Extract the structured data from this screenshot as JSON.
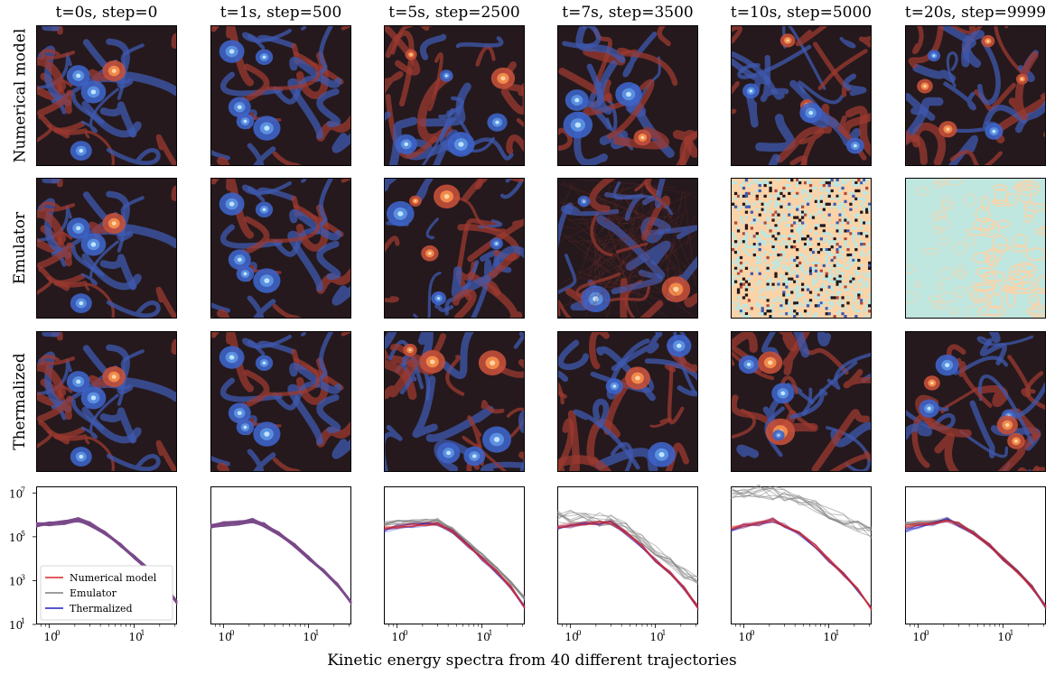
{
  "columns": [
    {
      "title": "t=0s, step=0"
    },
    {
      "title": "t=1s, step=500"
    },
    {
      "title": "t=5s, step=2500"
    },
    {
      "title": "t=7s, step=3500"
    },
    {
      "title": "t=10s, step=5000"
    },
    {
      "title": "t=20s, step=9999"
    }
  ],
  "rows": [
    {
      "label": "Numerical model"
    },
    {
      "label": "Emulator"
    },
    {
      "label": "Thermalized"
    }
  ],
  "colors": {
    "numerical": "#d62728",
    "emulator": "#7f7f7f",
    "thermalized": "#1f1fbf",
    "overlap": "#7a4a8a",
    "vort_pos": "#f08a4b",
    "vort_neg": "#5b8fe0",
    "vort_bg": "#25191d",
    "noise_light": "#fbd3a8",
    "noise_cyan": "#bfe6df"
  },
  "chart_data": {
    "type": "line",
    "title": "",
    "xlabel": "Kinetic energy spectra from 40 different trajectories",
    "ylabel": "",
    "xscale": "log",
    "yscale": "log",
    "xlim": [
      0.7,
      32
    ],
    "ylim": [
      10,
      20000000
    ],
    "x_ticks": [
      "10^0",
      "10^1"
    ],
    "y_ticks": [
      "10^1",
      "10^3",
      "10^5",
      "10^7"
    ],
    "legend": {
      "placement": "lower-left",
      "entries": [
        "Numerical model",
        "Emulator",
        "Thermalized"
      ]
    },
    "num_trajectories": 40,
    "k": [
      0.7,
      1,
      1.5,
      2.2,
      3,
      4.5,
      7,
      10,
      15,
      22,
      32
    ],
    "panels": [
      {
        "time": "t=0s",
        "series": [
          {
            "name": "Numerical model",
            "values": [
              350000,
              400000,
              450000,
              600000,
              380000,
              150000,
              40000,
              12000,
              3000,
              700,
              100
            ]
          },
          {
            "name": "Emulator",
            "values": [
              350000,
              400000,
              450000,
              600000,
              380000,
              150000,
              40000,
              12000,
              3000,
              700,
              100
            ]
          },
          {
            "name": "Thermalized",
            "values": [
              350000,
              400000,
              450000,
              600000,
              380000,
              150000,
              40000,
              12000,
              3000,
              700,
              100
            ]
          }
        ]
      },
      {
        "time": "t=1s",
        "series": [
          {
            "name": "Numerical model",
            "values": [
              300000,
              380000,
              420000,
              550000,
              350000,
              140000,
              38000,
              11000,
              2800,
              650,
              100
            ]
          },
          {
            "name": "Emulator",
            "values": [
              300000,
              380000,
              420000,
              550000,
              350000,
              140000,
              38000,
              11000,
              2800,
              650,
              100
            ]
          },
          {
            "name": "Thermalized",
            "values": [
              300000,
              380000,
              420000,
              550000,
              350000,
              140000,
              38000,
              11000,
              2800,
              650,
              100
            ]
          }
        ]
      },
      {
        "time": "t=5s",
        "series": [
          {
            "name": "Numerical model",
            "values": [
              250000,
              300000,
              350000,
              400000,
              420000,
              180000,
              40000,
              11000,
              2500,
              500,
              60
            ]
          },
          {
            "name": "Emulator",
            "values": [
              400000,
              450000,
              480000,
              500000,
              550000,
              220000,
              50000,
              15000,
              3500,
              800,
              150
            ]
          },
          {
            "name": "Thermalized",
            "values": [
              200000,
              280000,
              330000,
              380000,
              400000,
              170000,
              38000,
              10000,
              2400,
              480,
              60
            ]
          }
        ]
      },
      {
        "time": "t=7s",
        "series": [
          {
            "name": "Numerical model",
            "values": [
              300000,
              350000,
              400000,
              420000,
              450000,
              160000,
              38000,
              9000,
              2200,
              450,
              60
            ]
          },
          {
            "name": "Emulator",
            "values": [
              900000,
              800000,
              700000,
              600000,
              500000,
              250000,
              80000,
              25000,
              6000,
              2000,
              1000
            ]
          },
          {
            "name": "Thermalized",
            "values": [
              250000,
              320000,
              380000,
              400000,
              430000,
              150000,
              36000,
              8500,
              2100,
              430,
              60
            ]
          }
        ]
      },
      {
        "time": "t=10s",
        "series": [
          {
            "name": "Numerical model",
            "values": [
              250000,
              320000,
              400000,
              600000,
              350000,
              150000,
              38000,
              9000,
              2000,
              400,
              50
            ]
          },
          {
            "name": "Emulator",
            "values": [
              12000000,
              13000000,
              12000000,
              10000000,
              8000000,
              5000000,
              2500000,
              1200000,
              600000,
              300000,
              150000
            ]
          },
          {
            "name": "Thermalized",
            "values": [
              220000,
              300000,
              380000,
              580000,
              330000,
              140000,
              36000,
              8500,
              1900,
              380,
              50
            ]
          }
        ]
      },
      {
        "time": "t=20s",
        "series": [
          {
            "name": "Numerical model",
            "values": [
              300000,
              350000,
              420000,
              600000,
              380000,
              150000,
              40000,
              10000,
              2400,
              500,
              60
            ]
          },
          {
            "name": "Emulator",
            "values": [
              400000,
              420000,
              450000,
              620000,
              400000,
              160000,
              42000,
              10500,
              2500,
              520,
              65
            ]
          },
          {
            "name": "Thermalized",
            "values": [
              200000,
              300000,
              400000,
              580000,
              360000,
              145000,
              39000,
              9800,
              2300,
              480,
              60
            ]
          }
        ]
      }
    ]
  }
}
